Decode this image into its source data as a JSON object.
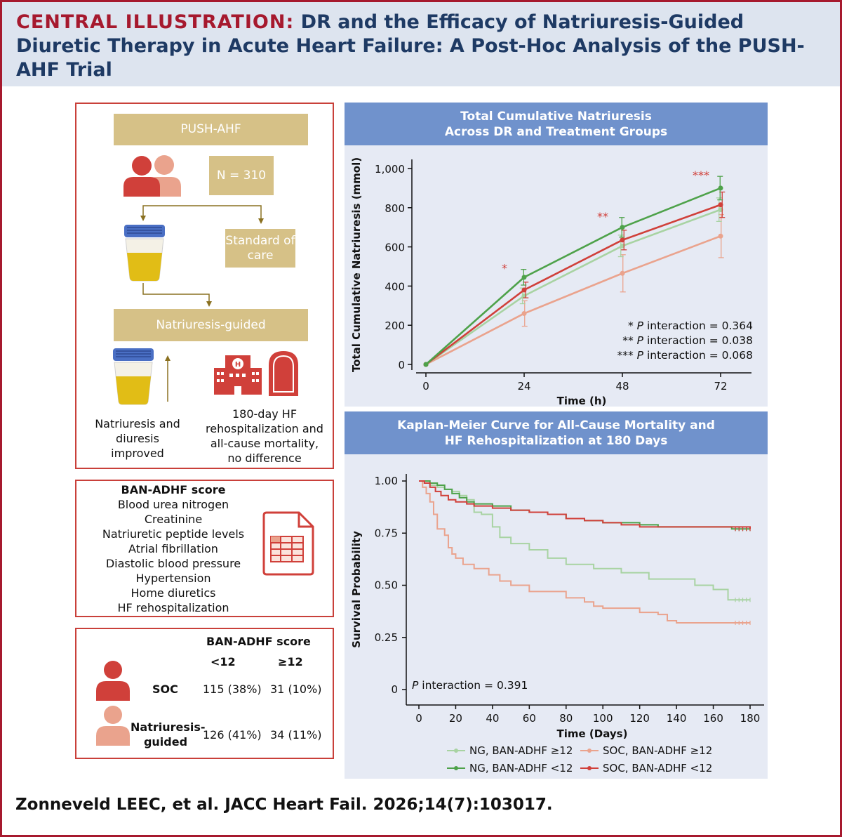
{
  "header": {
    "label": "CENTRAL ILLUSTRATION:",
    "title": "DR and the Efficacy of Natriuresis-Guided Diuretic Therapy in Acute Heart Failure: A Post-Hoc Analysis of the PUSH-AHF Trial"
  },
  "flow": {
    "trial": "PUSH-AHF",
    "n": "N = 310",
    "standard": "Standard of care",
    "guided": "Natriuresis-guided",
    "outcome_improved": "Natriuresis and diuresis improved",
    "outcome_none": "180-day HF rehospitalization and all-cause mortality, no difference"
  },
  "score": {
    "title": "BAN-ADHF score",
    "items": [
      "Blood urea nitrogen",
      "Creatinine",
      "Natriuretic peptide levels",
      "Atrial fibrillation",
      "Diastolic blood pressure",
      "Hypertension",
      "Home diuretics",
      "HF rehospitalization"
    ]
  },
  "table": {
    "title": "BAN-ADHF score",
    "col_low": "<12",
    "col_high": "≥12",
    "row_soc": {
      "label": "SOC",
      "low": "115 (38%)",
      "high": "31 (10%)"
    },
    "row_ng": {
      "label": "Natriuresis-guided",
      "low": "126 (41%)",
      "high": "34 (11%)"
    }
  },
  "colors": {
    "ng_high": "#a8d3a2",
    "ng_low": "#4ea24a",
    "soc_high": "#eaa38d",
    "soc_low": "#d0403a",
    "panel_border": "#c9403a",
    "tan": "#d6c187",
    "bar_blue": "#7092cc"
  },
  "chart_data": [
    {
      "type": "line",
      "title": "Total Cumulative Natriuresis Across DR and Treatment Groups",
      "xlabel": "Time (h)",
      "ylabel": "Total Cumulative Natriuresis (mmol)",
      "x": [
        0,
        24,
        48,
        72
      ],
      "xticks": [
        "0",
        "24",
        "48",
        "72"
      ],
      "yticks": [
        "0",
        "200",
        "400",
        "600",
        "800",
        "1,000"
      ],
      "xlim": [
        0,
        72
      ],
      "ylim": [
        0,
        1000
      ],
      "series": [
        {
          "name": "NG, BAN-ADHF ≥12",
          "values": [
            0,
            350,
            605,
            790
          ],
          "err": [
            0,
            40,
            55,
            60
          ]
        },
        {
          "name": "NG, BAN-ADHF <12",
          "values": [
            0,
            445,
            700,
            900
          ],
          "err": [
            0,
            40,
            50,
            60
          ]
        },
        {
          "name": "SOC, BAN-ADHF ≥12",
          "values": [
            0,
            260,
            465,
            655
          ],
          "err": [
            0,
            65,
            95,
            110
          ]
        },
        {
          "name": "SOC, BAN-ADHF <12",
          "values": [
            0,
            380,
            635,
            815
          ],
          "err": [
            0,
            40,
            50,
            65
          ]
        }
      ],
      "markers": [
        {
          "x": 24,
          "text": "*"
        },
        {
          "x": 48,
          "text": "**"
        },
        {
          "x": 72,
          "text": "***"
        }
      ],
      "annotations": [
        "* P interaction  = 0.364",
        "** P interaction  = 0.038",
        "*** P interaction  = 0.068"
      ]
    },
    {
      "type": "line",
      "title": "Kaplan-Meier Curve for All-Cause Mortality and HF Rehospitalization at 180 Days",
      "xlabel": "Time (Days)",
      "ylabel": "Survival Probability",
      "xticks": [
        "0",
        "20",
        "40",
        "60",
        "80",
        "100",
        "120",
        "140",
        "160",
        "180"
      ],
      "yticks": [
        "0",
        "0.25",
        "0.50",
        "0.75",
        "1.00"
      ],
      "xlim": [
        0,
        180
      ],
      "ylim": [
        0,
        1
      ],
      "annotation": "P interaction  = 0.391",
      "legend": [
        "NG, BAN-ADHF ≥12",
        "SOC, BAN-ADHF ≥12",
        "NG, BAN-ADHF <12",
        "SOC, BAN-ADHF <12"
      ],
      "legend_position": "bottom",
      "series": [
        {
          "name": "NG, BAN-ADHF ≥12",
          "x": [
            0,
            3,
            6,
            10,
            14,
            18,
            22,
            26,
            30,
            34,
            40,
            44,
            50,
            60,
            70,
            80,
            95,
            110,
            125,
            140,
            150,
            160,
            168,
            180
          ],
          "y": [
            1,
            0.99,
            0.98,
            0.97,
            0.96,
            0.95,
            0.93,
            0.91,
            0.85,
            0.84,
            0.78,
            0.73,
            0.7,
            0.67,
            0.63,
            0.6,
            0.58,
            0.56,
            0.53,
            0.53,
            0.5,
            0.48,
            0.43,
            0.43
          ]
        },
        {
          "name": "NG, BAN-ADHF <12",
          "x": [
            0,
            3,
            6,
            10,
            14,
            18,
            22,
            26,
            30,
            40,
            50,
            60,
            70,
            80,
            90,
            100,
            110,
            120,
            130,
            140,
            160,
            170,
            180
          ],
          "y": [
            1,
            1,
            0.99,
            0.98,
            0.96,
            0.94,
            0.92,
            0.9,
            0.89,
            0.88,
            0.86,
            0.85,
            0.84,
            0.82,
            0.81,
            0.8,
            0.8,
            0.79,
            0.78,
            0.78,
            0.78,
            0.77,
            0.77
          ]
        },
        {
          "name": "SOC, BAN-ADHF ≥12",
          "x": [
            0,
            2,
            4,
            6,
            8,
            10,
            14,
            16,
            18,
            20,
            24,
            30,
            38,
            44,
            50,
            60,
            70,
            80,
            90,
            95,
            100,
            110,
            120,
            130,
            135,
            140,
            150,
            160,
            170,
            180
          ],
          "y": [
            1,
            0.97,
            0.94,
            0.9,
            0.84,
            0.77,
            0.74,
            0.68,
            0.65,
            0.63,
            0.6,
            0.58,
            0.55,
            0.52,
            0.5,
            0.47,
            0.47,
            0.44,
            0.42,
            0.4,
            0.39,
            0.39,
            0.37,
            0.36,
            0.33,
            0.32,
            0.32,
            0.32,
            0.32,
            0.32
          ]
        },
        {
          "name": "SOC, BAN-ADHF <12",
          "x": [
            0,
            3,
            6,
            9,
            12,
            16,
            20,
            26,
            30,
            40,
            50,
            60,
            70,
            80,
            90,
            100,
            110,
            120,
            140,
            160,
            170,
            180
          ],
          "y": [
            1,
            0.99,
            0.97,
            0.95,
            0.93,
            0.91,
            0.9,
            0.89,
            0.88,
            0.87,
            0.86,
            0.85,
            0.84,
            0.82,
            0.81,
            0.8,
            0.79,
            0.78,
            0.78,
            0.78,
            0.78,
            0.77
          ]
        }
      ]
    }
  ],
  "footer": "Zonneveld LEEC, et al. JACC Heart Fail. 2026;14(7):103017."
}
